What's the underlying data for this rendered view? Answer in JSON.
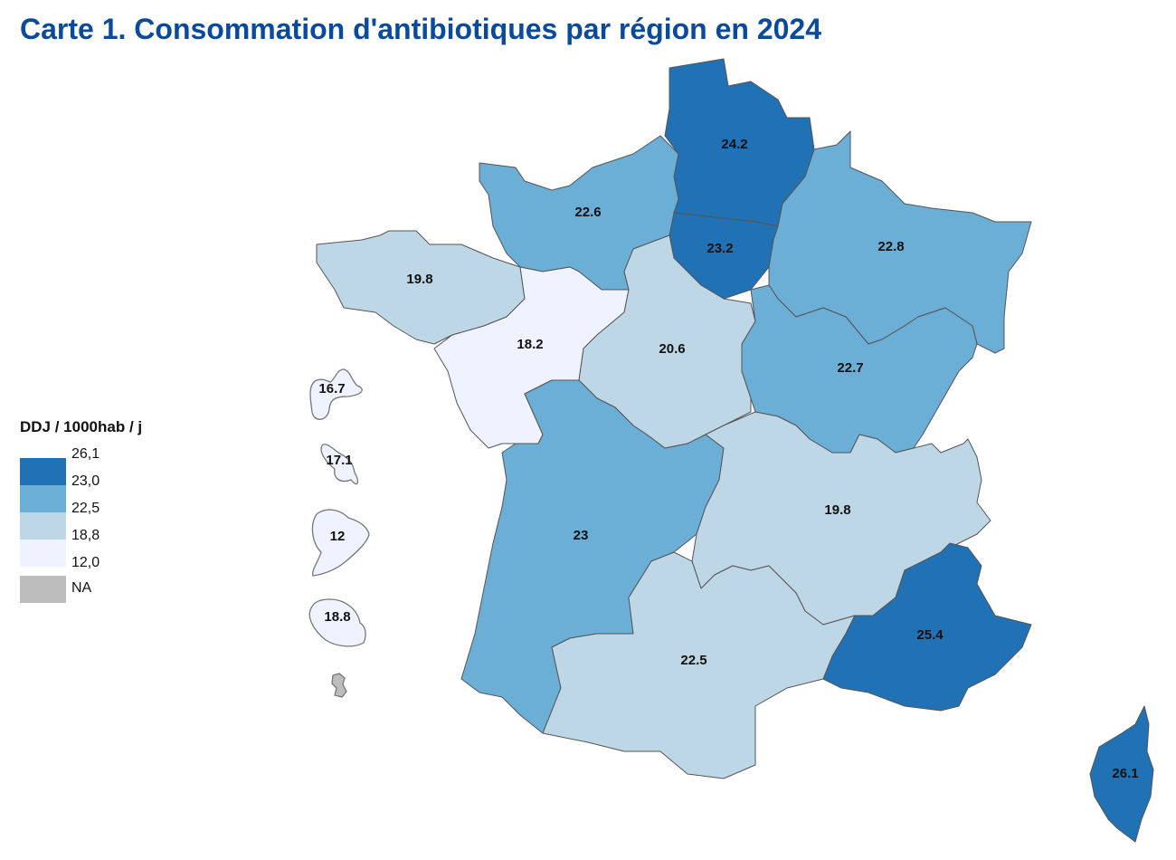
{
  "title": "Carte 1. Consommation d'antibiotiques par région en 2024",
  "colors": {
    "c1": "#2171b5",
    "c2": "#6baed6",
    "c3": "#bdd7e7",
    "c4": "#eff3ff",
    "na": "#bdbdbd"
  },
  "legend": {
    "title": "DDJ / 1000hab / j",
    "breaks": [
      "26,1",
      "23,0",
      "22,5",
      "18,8",
      "12,0"
    ],
    "na_label": "NA"
  },
  "regions": [
    {
      "value": "24.2",
      "cls": "c1"
    },
    {
      "value": "23.2",
      "cls": "c1"
    },
    {
      "value": "22.6",
      "cls": "c2"
    },
    {
      "value": "19.8",
      "cls": "c3"
    },
    {
      "value": "18.2",
      "cls": "c4"
    },
    {
      "value": "20.6",
      "cls": "c3"
    },
    {
      "value": "22.8",
      "cls": "c2"
    },
    {
      "value": "22.7",
      "cls": "c2"
    },
    {
      "value": "23",
      "cls": "c2"
    },
    {
      "value": "19.8",
      "cls": "c3"
    },
    {
      "value": "22.5",
      "cls": "c3"
    },
    {
      "value": "25.4",
      "cls": "c1"
    },
    {
      "value": "26.1",
      "cls": "c1"
    }
  ],
  "overseas": [
    {
      "value": "16.7",
      "cls": "c4"
    },
    {
      "value": "17.1",
      "cls": "c4"
    },
    {
      "value": "12",
      "cls": "c4"
    },
    {
      "value": "18.8",
      "cls": "c4"
    },
    {
      "value": null,
      "cls": "na"
    }
  ]
}
